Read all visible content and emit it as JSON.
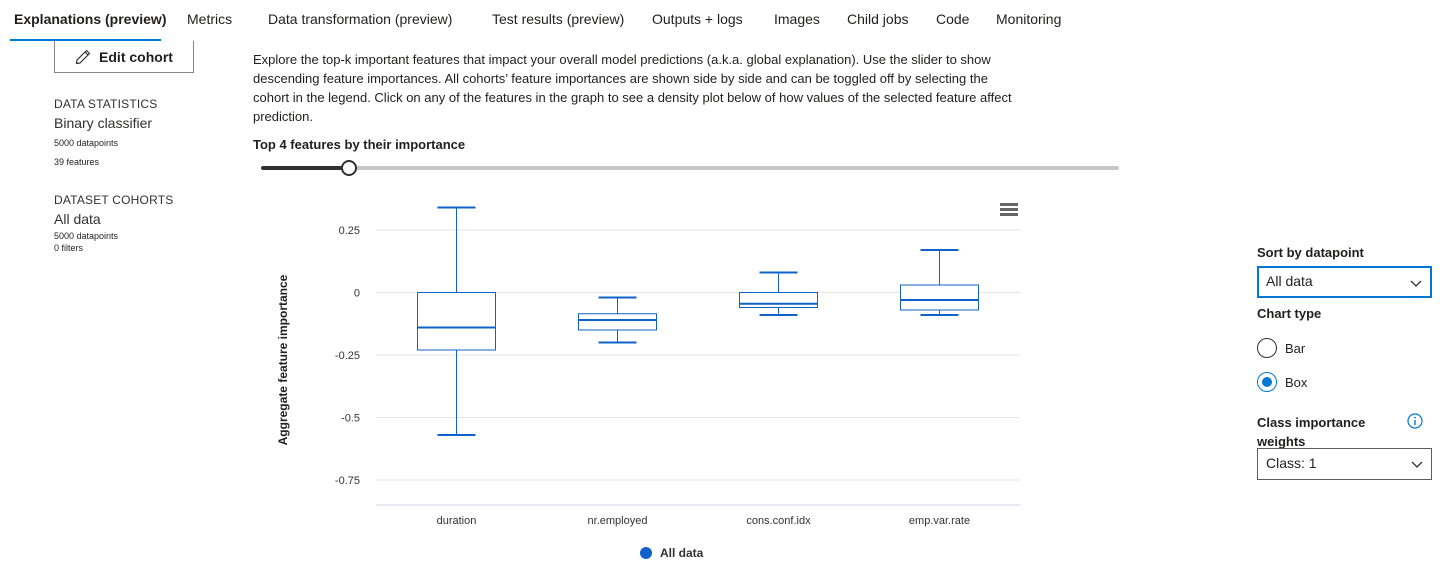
{
  "tabs": [
    {
      "label": "Explanations (preview)",
      "active": true
    },
    {
      "label": "Metrics"
    },
    {
      "label": "Data transformation (preview)"
    },
    {
      "label": "Test results (preview)"
    },
    {
      "label": "Outputs + logs"
    },
    {
      "label": "Images"
    },
    {
      "label": "Child jobs"
    },
    {
      "label": "Code"
    },
    {
      "label": "Monitoring"
    }
  ],
  "left_panel": {
    "edit_cohort_label": "Edit cohort",
    "edit_icon": "pencil-icon",
    "data_statistics_heading": "DATA STATISTICS",
    "classifier": "Binary classifier",
    "datapoints": "5000 datapoints",
    "features": "39 features",
    "dataset_cohorts_heading": "DATASET COHORTS",
    "cohort_name": "All data",
    "cohort_datapoints": "5000 datapoints",
    "cohort_filters": "0 filters"
  },
  "main": {
    "description": "Explore the top-k important features that impact your overall model predictions (a.k.a. global explanation). Use the slider to show descending feature importances. All cohorts’ feature importances are shown side by side and can be toggled off by selecting the cohort in the legend. Click on any of the features in the graph to see a density plot below of how values of the selected feature affect prediction.",
    "topk_label": "Top 4 features by their importance",
    "slider_value": 4,
    "slider_max": 39,
    "menu_icon": "hamburger-menu-icon"
  },
  "chart_data": {
    "type": "box",
    "ylabel": "Aggregate feature importance",
    "xlabel": "",
    "ylim": [
      -0.85,
      0.35
    ],
    "yticks": [
      0.25,
      0,
      -0.25,
      -0.5,
      -0.75
    ],
    "ytick_labels": [
      "0.25",
      "0",
      "-0.25",
      "-0.5",
      "-0.75"
    ],
    "grid": true,
    "categories": [
      "duration",
      "nr.employed",
      "cons.conf.idx",
      "emp.var.rate"
    ],
    "series": [
      {
        "name": "All data",
        "color": "#0f62c9",
        "boxes": [
          {
            "min": -0.57,
            "q1": -0.23,
            "median": -0.14,
            "q3": 0.0,
            "max": 0.34
          },
          {
            "min": -0.2,
            "q1": -0.15,
            "median": -0.11,
            "q3": -0.085,
            "max": -0.02
          },
          {
            "min": -0.09,
            "q1": -0.06,
            "median": -0.045,
            "q3": 0.0,
            "max": 0.08
          },
          {
            "min": -0.09,
            "q1": -0.07,
            "median": -0.03,
            "q3": 0.03,
            "max": 0.17
          }
        ]
      }
    ],
    "legend_position": "bottom-center"
  },
  "right_panel": {
    "sort_label": "Sort by datapoint",
    "sort_value": "All data",
    "chart_type_label": "Chart type",
    "chart_type_options": [
      {
        "label": "Bar",
        "checked": false
      },
      {
        "label": "Box",
        "checked": true
      }
    ],
    "class_weights_label": "Class importance weights",
    "class_weights_value": "Class: 1",
    "info_icon": "info-icon",
    "chevron_icon": "chevron-down-icon"
  }
}
